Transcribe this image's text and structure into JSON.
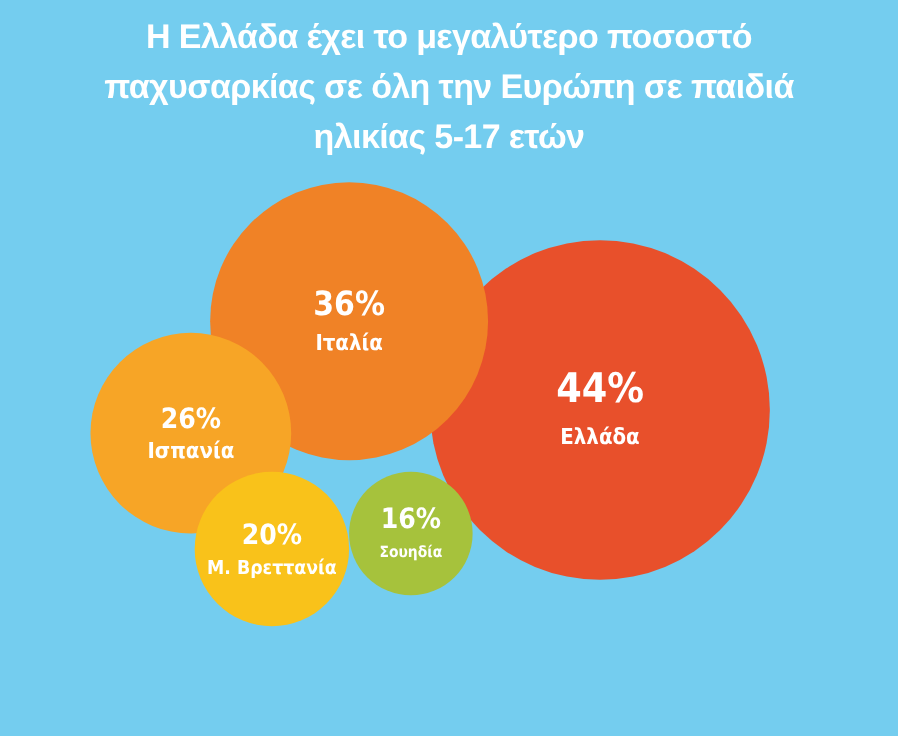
{
  "chart_data": {
    "type": "other",
    "title": "Η Ελλάδα έχει το μεγαλύτερο ποσοστό παχυσαρκίας σε όλη την Ευρώπη σε παιδιά ηλικίας 5-17 ετών",
    "categories": [
      "Ελλάδα",
      "Ιταλία",
      "Ισπανία",
      "Μ. Βρεττανία",
      "Σουηδία"
    ],
    "values": [
      44,
      36,
      26,
      20,
      16
    ],
    "value_labels": [
      "44%",
      "36%",
      "26%",
      "20%",
      "16%"
    ],
    "colors": [
      "#e8502b",
      "#f08226",
      "#f7a526",
      "#f9c21a",
      "#a6c23c"
    ]
  }
}
